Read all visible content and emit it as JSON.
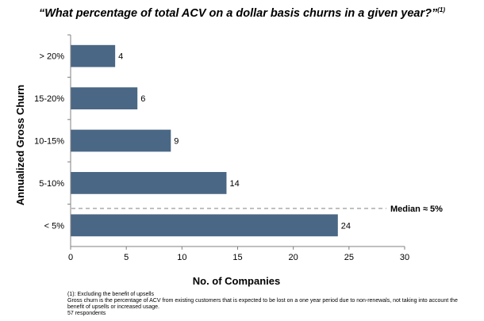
{
  "title": "“What percentage of total ACV on a dollar basis churns in a given year?”",
  "title_superscript": "(1)",
  "chart_data": {
    "type": "bar",
    "orientation": "horizontal",
    "categories": [
      "> 20%",
      "15-20%",
      "10-15%",
      "5-10%",
      "< 5%"
    ],
    "values": [
      4,
      6,
      9,
      14,
      24
    ],
    "xlabel": "No. of Companies",
    "ylabel": "Annualized Gross Churn",
    "xlim": [
      0,
      30
    ],
    "xticks": [
      0,
      5,
      10,
      15,
      20,
      25,
      30
    ],
    "grid": false,
    "legend": "none",
    "bar_color": "#4a6785",
    "median_annotation": "Median  ≈ 5%"
  },
  "footnotes": [
    "(1): Excluding the benefit of upsells",
    "Gross churn is the percentage of ACV from existing customers that is expected to be lost on a one year period due to non-renewals, not taking into account the benefit of upsells or increased usage.",
    "57 respondents"
  ]
}
